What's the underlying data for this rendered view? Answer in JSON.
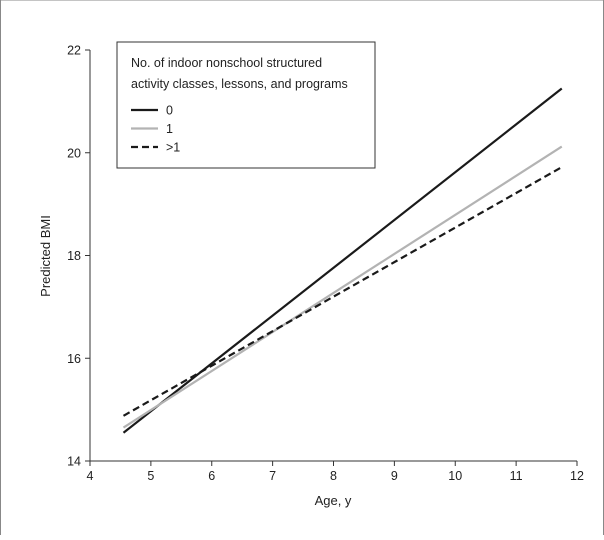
{
  "chart_data": {
    "type": "line",
    "title": "",
    "xlabel": "Age, y",
    "ylabel": "Predicted BMI",
    "xlim": [
      4,
      12
    ],
    "ylim": [
      14,
      22
    ],
    "xticks": [
      4,
      5,
      6,
      7,
      8,
      9,
      10,
      11,
      12
    ],
    "yticks": [
      14,
      16,
      18,
      20,
      22
    ],
    "grid": false,
    "legend": {
      "placement": "top-left",
      "title": "No. of indoor nonschool structured activity classes, lessons, and programs",
      "title_lines": [
        "No. of indoor nonschool structured",
        "activity classes, lessons, and programs"
      ]
    },
    "series": [
      {
        "name": "0",
        "color": "#1a1a1a",
        "style": "solid",
        "x": [
          4.55,
          11.75
        ],
        "y": [
          14.55,
          21.25
        ]
      },
      {
        "name": "1",
        "color": "#b3b3b3",
        "style": "solid",
        "x": [
          4.55,
          11.75
        ],
        "y": [
          14.65,
          20.12
        ]
      },
      {
        "name": ">1",
        "color": "#1a1a1a",
        "style": "dashed",
        "x": [
          4.55,
          11.75
        ],
        "y": [
          14.88,
          19.72
        ]
      }
    ]
  }
}
